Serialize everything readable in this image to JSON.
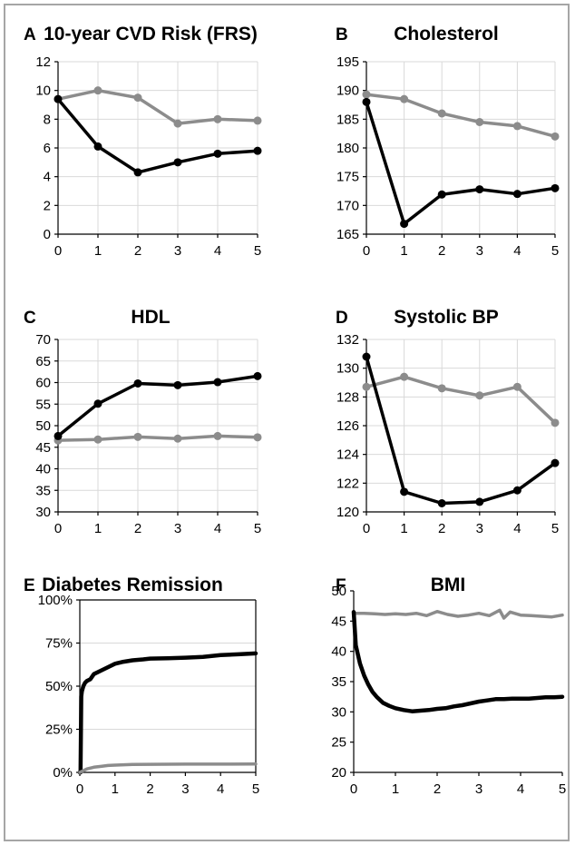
{
  "colors": {
    "intervention": "#000000",
    "control": "#8c8c8c",
    "grid": "#d9d9d9"
  },
  "chart_data": [
    {
      "panel": "A",
      "title": "10-year CVD Risk (FRS)",
      "type": "line",
      "x": [
        0,
        1,
        2,
        3,
        4,
        5
      ],
      "xticks": [
        "0",
        "1",
        "2",
        "3",
        "4",
        "5"
      ],
      "ylim": [
        0,
        12
      ],
      "yticks": [
        "0",
        "2",
        "4",
        "6",
        "8",
        "10",
        "12"
      ],
      "grid": true,
      "series": [
        {
          "color": "#8c8c8c",
          "markers": true,
          "values": [
            9.4,
            10.0,
            9.5,
            7.7,
            8.0,
            7.9
          ]
        },
        {
          "color": "#000000",
          "markers": true,
          "values": [
            9.4,
            6.1,
            4.3,
            5.0,
            5.6,
            5.8
          ]
        }
      ]
    },
    {
      "panel": "B",
      "title": "Cholesterol",
      "type": "line",
      "x": [
        0,
        1,
        2,
        3,
        4,
        5
      ],
      "xticks": [
        "0",
        "1",
        "2",
        "3",
        "4",
        "5"
      ],
      "ylim": [
        165,
        195
      ],
      "yticks": [
        "165",
        "170",
        "175",
        "180",
        "185",
        "190",
        "195"
      ],
      "grid": true,
      "series": [
        {
          "color": "#8c8c8c",
          "markers": true,
          "values": [
            189.3,
            188.5,
            186.0,
            184.5,
            183.8,
            182.0
          ]
        },
        {
          "color": "#000000",
          "markers": true,
          "values": [
            188.0,
            166.8,
            171.9,
            172.8,
            172.0,
            173.0
          ]
        }
      ]
    },
    {
      "panel": "C",
      "title": "HDL",
      "type": "line",
      "x": [
        0,
        1,
        2,
        3,
        4,
        5
      ],
      "xticks": [
        "0",
        "1",
        "2",
        "3",
        "4",
        "5"
      ],
      "ylim": [
        30,
        70
      ],
      "yticks": [
        "30",
        "35",
        "40",
        "45",
        "50",
        "55",
        "60",
        "65",
        "70"
      ],
      "grid": true,
      "series": [
        {
          "color": "#8c8c8c",
          "markers": true,
          "values": [
            46.6,
            46.8,
            47.4,
            47.0,
            47.6,
            47.3
          ]
        },
        {
          "color": "#000000",
          "markers": true,
          "values": [
            47.6,
            55.1,
            59.8,
            59.4,
            60.1,
            61.5
          ]
        }
      ]
    },
    {
      "panel": "D",
      "title": "Systolic BP",
      "type": "line",
      "x": [
        0,
        1,
        2,
        3,
        4,
        5
      ],
      "xticks": [
        "0",
        "1",
        "2",
        "3",
        "4",
        "5"
      ],
      "ylim": [
        120,
        132
      ],
      "yticks": [
        "120",
        "122",
        "124",
        "126",
        "128",
        "130",
        "132"
      ],
      "grid": true,
      "series": [
        {
          "color": "#8c8c8c",
          "markers": true,
          "values": [
            128.7,
            129.4,
            128.6,
            128.1,
            128.7,
            126.2
          ]
        },
        {
          "color": "#000000",
          "markers": true,
          "values": [
            130.8,
            121.4,
            120.6,
            120.7,
            121.5,
            123.4
          ]
        }
      ]
    },
    {
      "panel": "E",
      "title": "Diabetes Remission",
      "type": "line",
      "xlim": [
        0,
        5
      ],
      "xticks": [
        "0",
        "1",
        "2",
        "3",
        "4",
        "5"
      ],
      "ylim": [
        0,
        100
      ],
      "yticks": [
        "0%",
        "25%",
        "50%",
        "75%",
        "100%"
      ],
      "grid": true,
      "series": [
        {
          "color": "#000000",
          "markers": false,
          "points": [
            [
              0,
              0
            ],
            [
              0.02,
              0
            ],
            [
              0.04,
              44
            ],
            [
              0.06,
              47
            ],
            [
              0.1,
              50
            ],
            [
              0.15,
              52
            ],
            [
              0.2,
              53
            ],
            [
              0.3,
              54
            ],
            [
              0.4,
              57
            ],
            [
              0.6,
              59
            ],
            [
              0.8,
              61
            ],
            [
              1.0,
              63
            ],
            [
              1.2,
              64
            ],
            [
              1.5,
              65
            ],
            [
              1.8,
              65.5
            ],
            [
              2.0,
              66
            ],
            [
              2.5,
              66.2
            ],
            [
              3.0,
              66.5
            ],
            [
              3.5,
              67
            ],
            [
              4.0,
              68
            ],
            [
              4.5,
              68.5
            ],
            [
              5.0,
              69
            ]
          ]
        },
        {
          "color": "#8c8c8c",
          "markers": false,
          "points": [
            [
              0,
              0
            ],
            [
              0.1,
              1
            ],
            [
              0.2,
              2
            ],
            [
              0.4,
              3
            ],
            [
              0.6,
              3.5
            ],
            [
              0.8,
              4
            ],
            [
              1.0,
              4.2
            ],
            [
              1.5,
              4.6
            ],
            [
              2.0,
              4.7
            ],
            [
              3.0,
              4.8
            ],
            [
              4.0,
              4.8
            ],
            [
              5.0,
              4.9
            ]
          ]
        }
      ]
    },
    {
      "panel": "F",
      "title": "BMI",
      "type": "line",
      "xlim": [
        0,
        5
      ],
      "xticks": [
        "0",
        "1",
        "2",
        "3",
        "4",
        "5"
      ],
      "ylim": [
        20,
        50
      ],
      "yticks": [
        "20",
        "25",
        "30",
        "35",
        "40",
        "45",
        "50"
      ],
      "grid": false,
      "series": [
        {
          "color": "#8c8c8c",
          "markers": false,
          "points": [
            [
              0,
              46.3
            ],
            [
              0.25,
              46.3
            ],
            [
              0.5,
              46.2
            ],
            [
              0.75,
              46.1
            ],
            [
              1.0,
              46.2
            ],
            [
              1.25,
              46.1
            ],
            [
              1.5,
              46.3
            ],
            [
              1.75,
              45.9
            ],
            [
              2.0,
              46.6
            ],
            [
              2.25,
              46.1
            ],
            [
              2.5,
              45.8
            ],
            [
              2.75,
              46.0
            ],
            [
              3.0,
              46.3
            ],
            [
              3.25,
              45.9
            ],
            [
              3.5,
              46.8
            ],
            [
              3.6,
              45.5
            ],
            [
              3.75,
              46.5
            ],
            [
              4.0,
              46.0
            ],
            [
              4.25,
              45.9
            ],
            [
              4.5,
              45.8
            ],
            [
              4.75,
              45.7
            ],
            [
              5.0,
              46.0
            ]
          ]
        },
        {
          "color": "#000000",
          "markers": false,
          "points": [
            [
              0,
              46.5
            ],
            [
              0.05,
              41
            ],
            [
              0.15,
              38
            ],
            [
              0.25,
              36
            ],
            [
              0.35,
              34.5
            ],
            [
              0.45,
              33.3
            ],
            [
              0.55,
              32.5
            ],
            [
              0.7,
              31.5
            ],
            [
              0.85,
              31.0
            ],
            [
              1.0,
              30.6
            ],
            [
              1.2,
              30.3
            ],
            [
              1.4,
              30.1
            ],
            [
              1.6,
              30.2
            ],
            [
              1.8,
              30.3
            ],
            [
              2.0,
              30.5
            ],
            [
              2.2,
              30.6
            ],
            [
              2.4,
              30.9
            ],
            [
              2.6,
              31.1
            ],
            [
              2.8,
              31.4
            ],
            [
              3.0,
              31.7
            ],
            [
              3.2,
              31.9
            ],
            [
              3.4,
              32.1
            ],
            [
              3.6,
              32.1
            ],
            [
              3.8,
              32.2
            ],
            [
              4.0,
              32.2
            ],
            [
              4.2,
              32.2
            ],
            [
              4.4,
              32.3
            ],
            [
              4.6,
              32.4
            ],
            [
              4.8,
              32.4
            ],
            [
              5.0,
              32.5
            ]
          ]
        }
      ]
    }
  ]
}
